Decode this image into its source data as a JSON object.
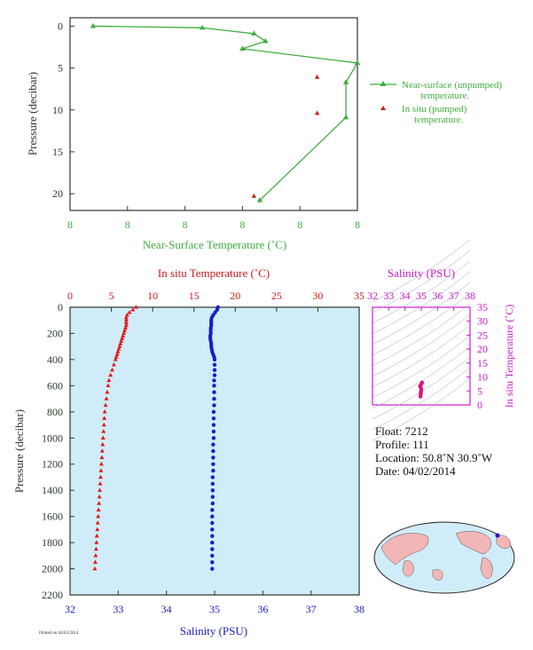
{
  "chart_data": [
    {
      "type": "line",
      "xlabel": "Near-Surface Temperature (˚C)",
      "ylabel": "Pressure (decibar)",
      "x_tick_labels": [
        "8",
        "8",
        "8",
        "8",
        "8",
        "8"
      ],
      "y_ticks": [
        0,
        5,
        10,
        15,
        20
      ],
      "ylim": [
        -1,
        22
      ],
      "series": [
        {
          "name": "Near-surface (unpumped) temperature.",
          "legend_line2": "",
          "points": [
            [
              8.04,
              0.0
            ],
            [
              8.23,
              0.2
            ],
            [
              8.32,
              0.9
            ],
            [
              8.34,
              1.8
            ],
            [
              8.3,
              2.7
            ],
            [
              8.5,
              4.4
            ],
            [
              8.48,
              6.7
            ],
            [
              8.48,
              10.9
            ],
            [
              8.33,
              20.8
            ]
          ]
        },
        {
          "name": "In situ (pumped) temperature.",
          "points": [
            [
              8.43,
              6.1
            ],
            [
              8.43,
              10.4
            ],
            [
              8.32,
              20.3
            ]
          ]
        }
      ],
      "grid": false
    },
    {
      "type": "scatter",
      "xlabel_top": "In situ Temperature (˚C)",
      "xlabel_bottom": "Salinity (PSU)",
      "ylabel": "Pressure (decibar)",
      "top_ticks": [
        0,
        5,
        10,
        15,
        20,
        25,
        30,
        35
      ],
      "bottom_ticks": [
        32,
        33,
        34,
        35,
        36,
        37,
        38
      ],
      "y_ticks": [
        0,
        200,
        400,
        600,
        800,
        1000,
        1200,
        1400,
        1600,
        1800,
        2000,
        2200
      ],
      "temperature_xlim": [
        0,
        35
      ],
      "salinity_xlim": [
        32,
        38
      ],
      "ylim": [
        2200,
        0
      ],
      "series": [
        {
          "name": "In situ Temperature (˚C)",
          "points": [
            [
              8.0,
              0
            ],
            [
              7.6,
              20
            ],
            [
              7.2,
              40
            ],
            [
              6.9,
              60
            ],
            [
              6.8,
              80
            ],
            [
              6.8,
              100
            ],
            [
              6.8,
              120
            ],
            [
              6.8,
              140
            ],
            [
              6.7,
              160
            ],
            [
              6.6,
              180
            ],
            [
              6.5,
              200
            ],
            [
              6.4,
              220
            ],
            [
              6.3,
              240
            ],
            [
              6.2,
              260
            ],
            [
              6.1,
              280
            ],
            [
              6.0,
              300
            ],
            [
              5.9,
              320
            ],
            [
              5.8,
              340
            ],
            [
              5.7,
              360
            ],
            [
              5.6,
              380
            ],
            [
              5.5,
              400
            ],
            [
              5.3,
              440
            ],
            [
              5.1,
              480
            ],
            [
              4.9,
              520
            ],
            [
              4.7,
              560
            ],
            [
              4.6,
              600
            ],
            [
              4.5,
              650
            ],
            [
              4.4,
              700
            ],
            [
              4.3,
              750
            ],
            [
              4.2,
              800
            ],
            [
              4.15,
              850
            ],
            [
              4.1,
              900
            ],
            [
              4.05,
              950
            ],
            [
              4.0,
              1000
            ],
            [
              3.95,
              1050
            ],
            [
              3.9,
              1100
            ],
            [
              3.85,
              1150
            ],
            [
              3.8,
              1200
            ],
            [
              3.75,
              1250
            ],
            [
              3.7,
              1300
            ],
            [
              3.65,
              1350
            ],
            [
              3.6,
              1400
            ],
            [
              3.55,
              1450
            ],
            [
              3.5,
              1500
            ],
            [
              3.45,
              1550
            ],
            [
              3.4,
              1600
            ],
            [
              3.35,
              1650
            ],
            [
              3.3,
              1700
            ],
            [
              3.25,
              1750
            ],
            [
              3.2,
              1800
            ],
            [
              3.15,
              1850
            ],
            [
              3.1,
              1900
            ],
            [
              3.05,
              1950
            ],
            [
              3.0,
              2000
            ]
          ]
        },
        {
          "name": "Salinity (PSU)",
          "points": [
            [
              35.07,
              0
            ],
            [
              35.05,
              20
            ],
            [
              35.01,
              40
            ],
            [
              34.97,
              60
            ],
            [
              34.94,
              80
            ],
            [
              34.93,
              100
            ],
            [
              34.93,
              120
            ],
            [
              34.93,
              140
            ],
            [
              34.92,
              160
            ],
            [
              34.92,
              180
            ],
            [
              34.92,
              200
            ],
            [
              34.91,
              220
            ],
            [
              34.91,
              240
            ],
            [
              34.92,
              260
            ],
            [
              34.93,
              280
            ],
            [
              34.93,
              300
            ],
            [
              34.94,
              320
            ],
            [
              34.95,
              340
            ],
            [
              34.97,
              360
            ],
            [
              34.99,
              380
            ],
            [
              35.0,
              400
            ],
            [
              35.0,
              440
            ],
            [
              35.0,
              480
            ],
            [
              35.0,
              520
            ],
            [
              34.99,
              560
            ],
            [
              34.99,
              600
            ],
            [
              34.99,
              650
            ],
            [
              34.99,
              700
            ],
            [
              34.99,
              750
            ],
            [
              34.98,
              800
            ],
            [
              34.98,
              850
            ],
            [
              34.98,
              900
            ],
            [
              34.98,
              950
            ],
            [
              34.98,
              1000
            ],
            [
              34.97,
              1050
            ],
            [
              34.97,
              1100
            ],
            [
              34.97,
              1150
            ],
            [
              34.97,
              1200
            ],
            [
              34.97,
              1250
            ],
            [
              34.96,
              1300
            ],
            [
              34.96,
              1350
            ],
            [
              34.96,
              1400
            ],
            [
              34.96,
              1450
            ],
            [
              34.96,
              1500
            ],
            [
              34.95,
              1550
            ],
            [
              34.95,
              1600
            ],
            [
              34.95,
              1650
            ],
            [
              34.95,
              1700
            ],
            [
              34.95,
              1750
            ],
            [
              34.95,
              1800
            ],
            [
              34.95,
              1850
            ],
            [
              34.95,
              1900
            ],
            [
              34.95,
              1950
            ],
            [
              34.95,
              2000
            ]
          ]
        }
      ]
    },
    {
      "type": "scatter",
      "xlabel": "Salinity (PSU)",
      "ylabel": "In situ Temperature (˚C)",
      "x_ticks": [
        32,
        33,
        34,
        35,
        36,
        37,
        38
      ],
      "y_ticks": [
        0,
        5,
        10,
        15,
        20,
        25,
        30,
        35
      ],
      "xlim": [
        32,
        38
      ],
      "ylim": [
        0,
        35
      ],
      "points": [
        [
          34.95,
          3.0
        ],
        [
          34.96,
          3.6
        ],
        [
          34.97,
          4.0
        ],
        [
          34.98,
          4.5
        ],
        [
          34.99,
          5.0
        ],
        [
          35.0,
          5.5
        ],
        [
          34.97,
          6.2
        ],
        [
          34.93,
          6.8
        ],
        [
          35.0,
          7.4
        ],
        [
          35.05,
          8.0
        ]
      ]
    }
  ],
  "info": {
    "float": "Float:  7212",
    "profile": "Profile:  111",
    "location": "Location:  50.8˚N  30.9˚W",
    "date": "Date:  04/02/2014"
  },
  "footer_mark": "Plotted on 04/03/2014",
  "colors": {
    "green": "#3fae3f",
    "red": "#cc1a1a",
    "blue": "#1a1acc",
    "magenta": "#cc1acc",
    "panel": "#d0ecf8"
  }
}
